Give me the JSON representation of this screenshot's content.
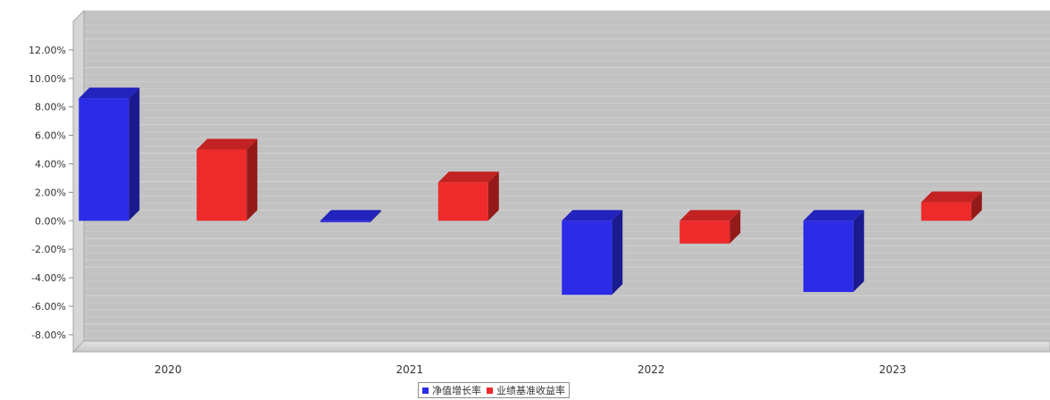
{
  "chart_data": {
    "type": "bar",
    "categories": [
      "2020",
      "2021",
      "2022",
      "2023"
    ],
    "series": [
      {
        "name": "净值增长率",
        "values": [
          8.6,
          -0.1,
          -5.2,
          -5.0
        ],
        "color": "#2b2be8"
      },
      {
        "name": "业绩基准收益率",
        "values": [
          5.0,
          2.7,
          -1.6,
          1.3
        ],
        "color": "#ee2a2a"
      }
    ],
    "y_ticks": [
      "12.00%",
      "10.00%",
      "8.00%",
      "6.00%",
      "4.00%",
      "2.00%",
      "0.00%",
      "-2.00%",
      "-4.00%",
      "-6.00%",
      "-8.00%"
    ],
    "ylim": [
      -9.2,
      14.0
    ],
    "grid": true,
    "legend_position": "bottom-center",
    "title": "",
    "xlabel": "",
    "ylabel": ""
  }
}
